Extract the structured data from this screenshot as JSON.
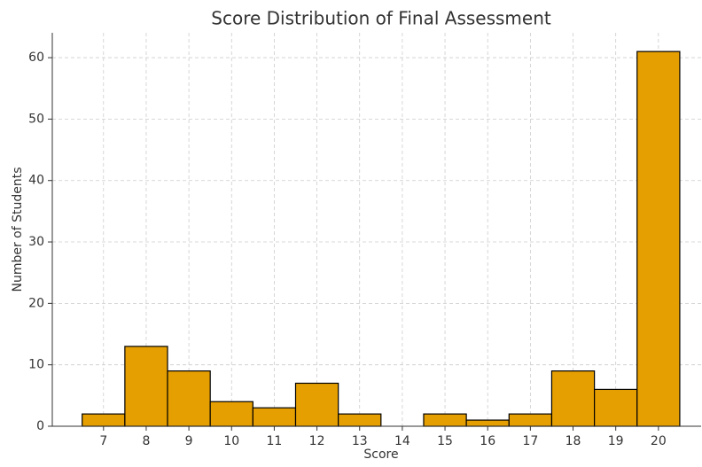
{
  "chart_data": {
    "type": "histogram",
    "title": "Score Distribution of Final Assessment",
    "xlabel": "Score",
    "ylabel": "Number of Students",
    "bins": [
      6.5,
      7.5,
      8.5,
      9.5,
      10.5,
      11.5,
      12.5,
      13.5,
      14.5,
      15.5,
      16.5,
      17.5,
      18.5,
      19.5,
      20.5
    ],
    "counts": [
      2,
      13,
      9,
      4,
      3,
      7,
      2,
      0,
      2,
      1,
      2,
      9,
      6,
      61
    ],
    "color": "#e69f00",
    "edgecolor": "#000000",
    "xlim": [
      5.8,
      21
    ],
    "ylim": [
      0,
      64.05
    ],
    "xticks": [
      7,
      8,
      9,
      10,
      11,
      12,
      13,
      14,
      15,
      16,
      17,
      18,
      19,
      20
    ],
    "yticks": [
      0,
      10,
      20,
      30,
      40,
      50,
      60
    ],
    "grid": true
  }
}
